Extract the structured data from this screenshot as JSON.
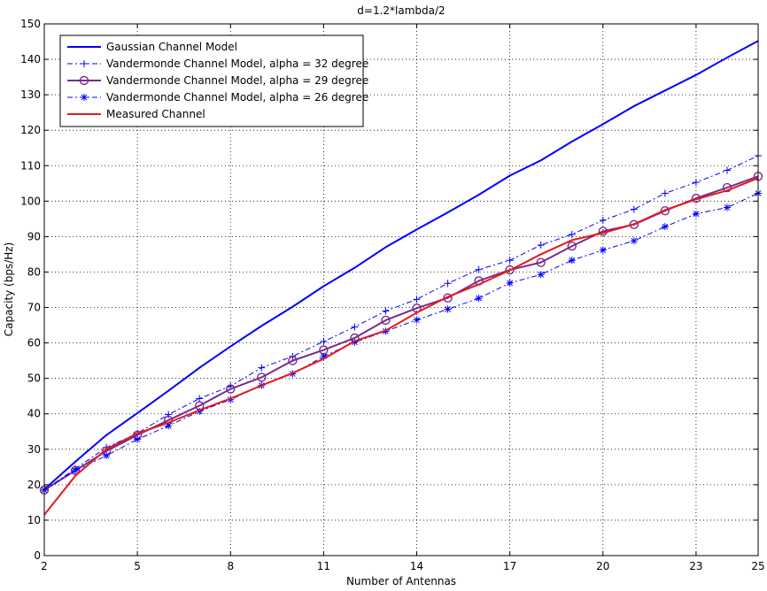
{
  "chart_data": {
    "type": "line",
    "title": "d=1.2*lambda/2",
    "xlabel": "Number of Antennas",
    "ylabel": "Capacity (bps/Hz)",
    "xlim": [
      2,
      25
    ],
    "ylim": [
      0,
      150
    ],
    "xticks": [
      2,
      5,
      8,
      11,
      14,
      17,
      20,
      23,
      25
    ],
    "yticks": [
      0,
      10,
      20,
      30,
      40,
      50,
      60,
      70,
      80,
      90,
      100,
      110,
      120,
      130,
      140,
      150
    ],
    "grid": "dotted",
    "legend_position": "top-left",
    "x": [
      2,
      3,
      4,
      5,
      6,
      7,
      8,
      9,
      10,
      11,
      12,
      13,
      14,
      15,
      16,
      17,
      18,
      19,
      20,
      21,
      22,
      23,
      24,
      25
    ],
    "series": [
      {
        "name": "Gaussian Channel Model",
        "color": "#0000ff",
        "style": "solid",
        "marker": "none",
        "width": 2,
        "values": [
          18.7,
          26.5,
          34.0,
          40.2,
          46.5,
          53.0,
          59.0,
          64.8,
          70.2,
          76.0,
          81.2,
          87.0,
          92.0,
          96.8,
          101.8,
          107.2,
          111.5,
          116.8,
          121.7,
          126.8,
          131.2,
          135.6,
          140.5,
          145.2
        ]
      },
      {
        "name": "Vandermonde Channel Model, alpha = 32 degree",
        "color": "#0000ff",
        "style": "dashdot",
        "marker": "plus",
        "width": 1,
        "values": [
          18.5,
          24.5,
          30.5,
          34.5,
          39.8,
          44.3,
          47.8,
          53.0,
          56.2,
          60.4,
          64.5,
          69.0,
          72.3,
          76.8,
          80.7,
          83.3,
          87.6,
          90.6,
          94.6,
          97.7,
          102.2,
          105.3,
          108.7,
          112.8
        ]
      },
      {
        "name": "Vandermonde Channel Model, alpha = 29 degree",
        "color": "#7a2a8c",
        "style": "solid",
        "marker": "circle",
        "width": 2,
        "values": [
          18.5,
          24.0,
          29.5,
          34.0,
          38.2,
          42.3,
          47.0,
          50.3,
          55.0,
          58.0,
          61.4,
          66.4,
          69.8,
          72.7,
          77.5,
          80.6,
          82.7,
          87.3,
          91.5,
          93.4,
          97.3,
          100.8,
          103.8,
          107.0
        ]
      },
      {
        "name": "Vandermonde Channel Model, alpha = 26 degree",
        "color": "#0000ff",
        "style": "dashdot",
        "marker": "asterisk",
        "width": 1,
        "values": [
          18.5,
          24.0,
          28.2,
          32.8,
          36.6,
          40.7,
          44.0,
          48.0,
          51.3,
          56.2,
          60.2,
          63.3,
          66.5,
          69.5,
          72.6,
          76.9,
          79.3,
          83.3,
          86.2,
          88.8,
          92.8,
          96.4,
          98.2,
          102.2
        ]
      },
      {
        "name": "Measured Channel",
        "color": "#e41a1a",
        "style": "solid",
        "marker": "none",
        "width": 2,
        "values": [
          11.5,
          22.5,
          30.0,
          34.5,
          37.5,
          41.0,
          44.3,
          48.0,
          51.5,
          55.5,
          60.5,
          63.5,
          68.5,
          73.0,
          76.5,
          80.5,
          85.0,
          89.0,
          91.0,
          93.5,
          97.5,
          100.5,
          103.0,
          106.5
        ]
      }
    ]
  }
}
